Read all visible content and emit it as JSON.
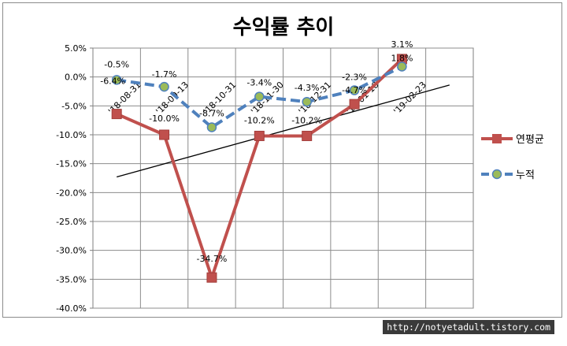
{
  "chart_data": {
    "type": "line",
    "title": "수익률 추이",
    "categories": [
      "'18-08-31",
      "'18-09-13",
      "'18-10-31",
      "'18-11-30",
      "'18-12-31",
      "'19-01-18",
      "'19-02-23"
    ],
    "series": [
      {
        "name": "연평균",
        "values": [
          -6.4,
          -10.0,
          -34.7,
          -10.2,
          -10.2,
          -4.7,
          3.1
        ],
        "labels": [
          "-6.4%",
          "-10.0%",
          "-34.7%",
          "-10.2%",
          "-10.2%",
          "-4.7%",
          "3.1%"
        ],
        "color": "#c0504d",
        "marker": "square",
        "line_style": "solid"
      },
      {
        "name": "누적",
        "values": [
          -0.5,
          -1.7,
          -8.7,
          -3.4,
          -4.3,
          -2.3,
          1.8
        ],
        "labels": [
          "-0.5%",
          "-1.7%",
          "-8.7%",
          "-3.4%",
          "-4.3%",
          "-2.3%",
          "1.8%"
        ],
        "color": "#4f81bd",
        "marker_color": "#9bbb59",
        "marker": "circle",
        "line_style": "dashed"
      }
    ],
    "trendline": {
      "color": "#000000",
      "start": -17.3,
      "end": -1.4
    },
    "yticks": [
      "5.0%",
      "0.0%",
      "-5.0%",
      "-10.0%",
      "-15.0%",
      "-20.0%",
      "-25.0%",
      "-30.0%",
      "-35.0%",
      "-40.0%"
    ],
    "ylim": [
      -40,
      5
    ],
    "grid": true,
    "legend_position": "right"
  },
  "watermark": "http://notyetadult.tistory.com"
}
